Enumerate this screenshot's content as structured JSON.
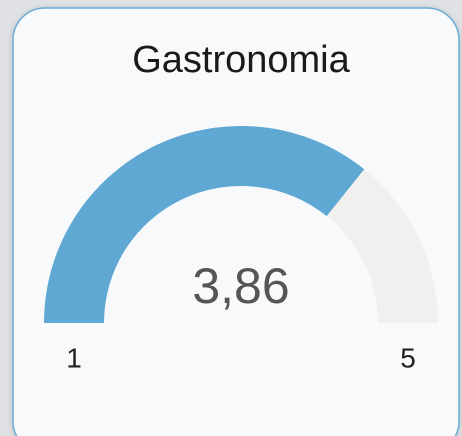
{
  "chart_data": {
    "type": "gauge",
    "title": "Gastronomia",
    "values": [
      3.86
    ],
    "value_labels": [
      "3,86"
    ],
    "color": "#5fa8d3",
    "track_color": "#f1f0ee",
    "ylim": [
      1,
      5
    ],
    "yticks": [
      1,
      5
    ]
  }
}
